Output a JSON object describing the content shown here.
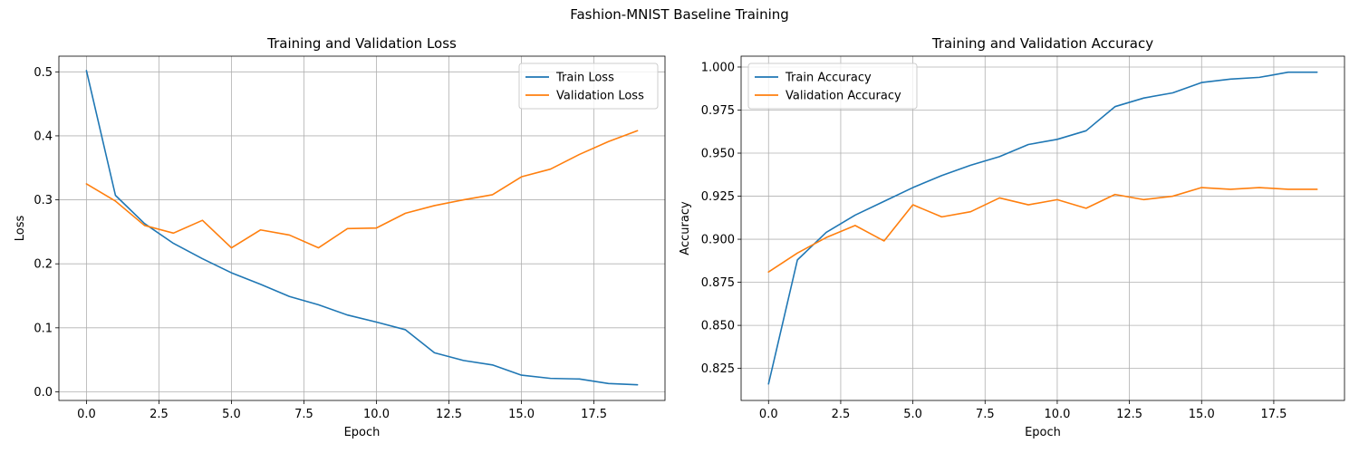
{
  "figure": {
    "title": "Fashion-MNIST Baseline Training"
  },
  "chart_data": [
    {
      "type": "line",
      "title": "Training and Validation Loss",
      "xlabel": "Epoch",
      "ylabel": "Loss",
      "xlim": [
        -0.95,
        19.95
      ],
      "ylim": [
        -0.0135,
        0.5245
      ],
      "xticks": [
        0.0,
        2.5,
        5.0,
        7.5,
        10.0,
        12.5,
        15.0,
        17.5
      ],
      "xtick_labels": [
        "0.0",
        "2.5",
        "5.0",
        "7.5",
        "10.0",
        "12.5",
        "15.0",
        "17.5"
      ],
      "yticks": [
        0.0,
        0.1,
        0.2,
        0.3,
        0.4,
        0.5
      ],
      "ytick_labels": [
        "0.0",
        "0.1",
        "0.2",
        "0.3",
        "0.4",
        "0.5"
      ],
      "grid": true,
      "legend_position": "upper-right",
      "x": [
        0,
        1,
        2,
        3,
        4,
        5,
        6,
        7,
        8,
        9,
        10,
        11,
        12,
        13,
        14,
        15,
        16,
        17,
        18,
        19
      ],
      "series": [
        {
          "name": "Train Loss",
          "color": "#1f77b4",
          "values": [
            0.502,
            0.307,
            0.263,
            0.232,
            0.208,
            0.186,
            0.168,
            0.149,
            0.136,
            0.12,
            0.109,
            0.097,
            0.061,
            0.049,
            0.042,
            0.026,
            0.021,
            0.02,
            0.013,
            0.011
          ]
        },
        {
          "name": "Validation Loss",
          "color": "#ff7f0e",
          "values": [
            0.325,
            0.298,
            0.26,
            0.248,
            0.268,
            0.225,
            0.253,
            0.245,
            0.225,
            0.255,
            0.256,
            0.279,
            0.291,
            0.3,
            0.308,
            0.336,
            0.348,
            0.371,
            0.391,
            0.408
          ]
        }
      ]
    },
    {
      "type": "line",
      "title": "Training and Validation Accuracy",
      "xlabel": "Epoch",
      "ylabel": "Accuracy",
      "xlim": [
        -0.95,
        19.95
      ],
      "ylim": [
        0.8064,
        1.0063
      ],
      "xticks": [
        0.0,
        2.5,
        5.0,
        7.5,
        10.0,
        12.5,
        15.0,
        17.5
      ],
      "xtick_labels": [
        "0.0",
        "2.5",
        "5.0",
        "7.5",
        "10.0",
        "12.5",
        "15.0",
        "17.5"
      ],
      "yticks": [
        0.825,
        0.85,
        0.875,
        0.9,
        0.925,
        0.95,
        0.975,
        1.0
      ],
      "ytick_labels": [
        "0.825",
        "0.850",
        "0.875",
        "0.900",
        "0.925",
        "0.950",
        "0.975",
        "1.000"
      ],
      "grid": true,
      "legend_position": "upper-left",
      "x": [
        0,
        1,
        2,
        3,
        4,
        5,
        6,
        7,
        8,
        9,
        10,
        11,
        12,
        13,
        14,
        15,
        16,
        17,
        18,
        19
      ],
      "series": [
        {
          "name": "Train Accuracy",
          "color": "#1f77b4",
          "values": [
            0.816,
            0.888,
            0.904,
            0.914,
            0.922,
            0.93,
            0.937,
            0.943,
            0.948,
            0.955,
            0.958,
            0.963,
            0.977,
            0.982,
            0.985,
            0.991,
            0.993,
            0.994,
            0.997,
            0.997
          ]
        },
        {
          "name": "Validation Accuracy",
          "color": "#ff7f0e",
          "values": [
            0.881,
            0.892,
            0.901,
            0.908,
            0.899,
            0.92,
            0.913,
            0.916,
            0.924,
            0.92,
            0.923,
            0.918,
            0.926,
            0.923,
            0.925,
            0.93,
            0.929,
            0.93,
            0.929,
            0.929
          ]
        }
      ]
    }
  ]
}
